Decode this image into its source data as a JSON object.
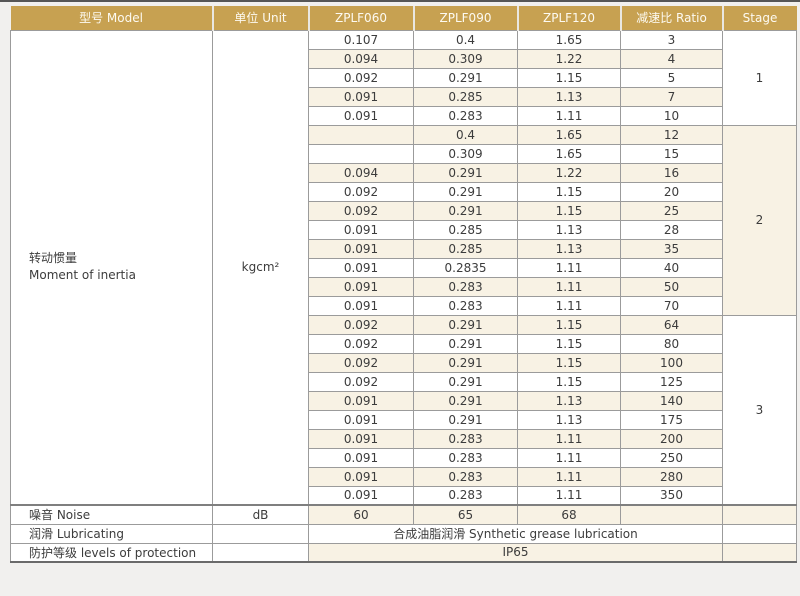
{
  "colors": {
    "header_bg": "#c7a151",
    "header_text": "#fdfaf1",
    "stripe_cream": "#f8f2e4",
    "row_white": "#ffffff",
    "grid_border": "#9b9b9b",
    "dark_border": "#6a6a6a",
    "body_text": "#3c3c3c"
  },
  "header": {
    "columns": [
      "型号 Model",
      "单位 Unit",
      "ZPLF060",
      "ZPLF090",
      "ZPLF120",
      "减速比 Ratio",
      "Stage"
    ]
  },
  "inertia": {
    "label_zh": "转动惯量",
    "label_en": "Moment of inertia",
    "unit": "kgcm²",
    "stages": [
      {
        "label": "1",
        "span": 5
      },
      {
        "label": "2",
        "span": 10
      },
      {
        "label": "3",
        "span": 10
      }
    ],
    "rows": [
      {
        "zplf060": "0.107",
        "zplf090": "0.4",
        "zplf120": "1.65",
        "ratio": "3"
      },
      {
        "zplf060": "0.094",
        "zplf090": "0.309",
        "zplf120": "1.22",
        "ratio": "4"
      },
      {
        "zplf060": "0.092",
        "zplf090": "0.291",
        "zplf120": "1.15",
        "ratio": "5"
      },
      {
        "zplf060": "0.091",
        "zplf090": "0.285",
        "zplf120": "1.13",
        "ratio": "7"
      },
      {
        "zplf060": "0.091",
        "zplf090": "0.283",
        "zplf120": "1.11",
        "ratio": "10"
      },
      {
        "zplf060": "",
        "zplf090": "0.4",
        "zplf120": "1.65",
        "ratio": "12"
      },
      {
        "zplf060": "",
        "zplf090": "0.309",
        "zplf120": "1.65",
        "ratio": "15"
      },
      {
        "zplf060": "0.094",
        "zplf090": "0.291",
        "zplf120": "1.22",
        "ratio": "16"
      },
      {
        "zplf060": "0.092",
        "zplf090": "0.291",
        "zplf120": "1.15",
        "ratio": "20"
      },
      {
        "zplf060": "0.092",
        "zplf090": "0.291",
        "zplf120": "1.15",
        "ratio": "25"
      },
      {
        "zplf060": "0.091",
        "zplf090": "0.285",
        "zplf120": "1.13",
        "ratio": "28"
      },
      {
        "zplf060": "0.091",
        "zplf090": "0.285",
        "zplf120": "1.13",
        "ratio": "35"
      },
      {
        "zplf060": "0.091",
        "zplf090": "0.2835",
        "zplf120": "1.11",
        "ratio": "40"
      },
      {
        "zplf060": "0.091",
        "zplf090": "0.283",
        "zplf120": "1.11",
        "ratio": "50"
      },
      {
        "zplf060": "0.091",
        "zplf090": "0.283",
        "zplf120": "1.11",
        "ratio": "70"
      },
      {
        "zplf060": "0.092",
        "zplf090": "0.291",
        "zplf120": "1.15",
        "ratio": "64"
      },
      {
        "zplf060": "0.092",
        "zplf090": "0.291",
        "zplf120": "1.15",
        "ratio": "80"
      },
      {
        "zplf060": "0.092",
        "zplf090": "0.291",
        "zplf120": "1.15",
        "ratio": "100"
      },
      {
        "zplf060": "0.092",
        "zplf090": "0.291",
        "zplf120": "1.15",
        "ratio": "125"
      },
      {
        "zplf060": "0.091",
        "zplf090": "0.291",
        "zplf120": "1.13",
        "ratio": "140"
      },
      {
        "zplf060": "0.091",
        "zplf090": "0.291",
        "zplf120": "1.13",
        "ratio": "175"
      },
      {
        "zplf060": "0.091",
        "zplf090": "0.283",
        "zplf120": "1.11",
        "ratio": "200"
      },
      {
        "zplf060": "0.091",
        "zplf090": "0.283",
        "zplf120": "1.11",
        "ratio": "250"
      },
      {
        "zplf060": "0.091",
        "zplf090": "0.283",
        "zplf120": "1.11",
        "ratio": "280"
      },
      {
        "zplf060": "0.091",
        "zplf090": "0.283",
        "zplf120": "1.11",
        "ratio": "350"
      }
    ]
  },
  "noise": {
    "label": "噪音 Noise",
    "unit": "dB",
    "zplf060": "60",
    "zplf090": "65",
    "zplf120": "68"
  },
  "lubricating": {
    "label": "润滑 Lubricating",
    "value": "合成油脂润滑 Synthetic grease lubrication"
  },
  "protection": {
    "label": "防护等级 levels of protection",
    "value": "IP65"
  }
}
